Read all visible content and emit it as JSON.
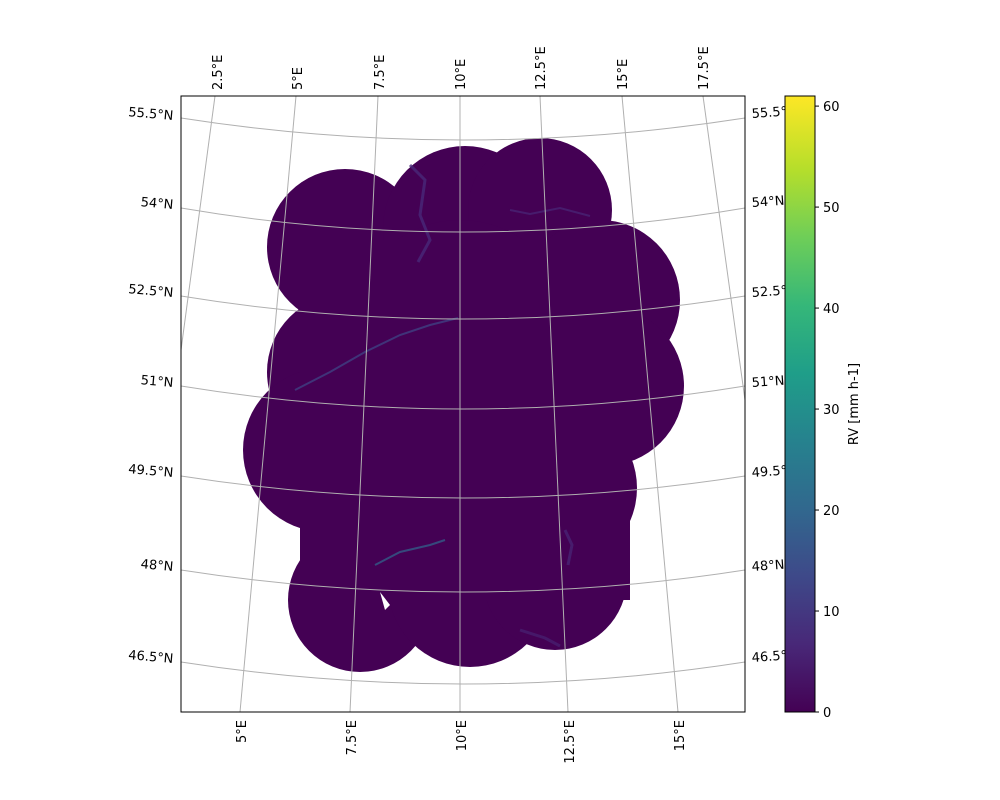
{
  "map": {
    "top_lon_labels": [
      "2.5°E",
      "5°E",
      "7.5°E",
      "10°E",
      "12.5°E",
      "15°E",
      "17.5°E"
    ],
    "bottom_lon_labels": [
      "5°E",
      "7.5°E",
      "10°E",
      "12.5°E",
      "15°E"
    ],
    "left_lat_labels": [
      "55.5°N",
      "54°N",
      "52.5°N",
      "51°N",
      "49.5°N",
      "48°N",
      "46.5°N"
    ],
    "right_lat_labels": [
      "55.5°",
      "54°N",
      "52.5°",
      "51°N",
      "49.5°",
      "48°N",
      "46.5°"
    ],
    "coverage_color": "#440154",
    "gridline_color": "#b0b0b0"
  },
  "colorbar": {
    "label": "RV [mm h-1]",
    "tick_labels": [
      "0",
      "10",
      "20",
      "30",
      "40",
      "50",
      "60"
    ],
    "min": 0,
    "max": 61,
    "colormap": [
      "#440154",
      "#482878",
      "#3e4989",
      "#31688e",
      "#26828e",
      "#1f9e89",
      "#35b779",
      "#6ece58",
      "#b5de2b",
      "#fde725"
    ]
  }
}
